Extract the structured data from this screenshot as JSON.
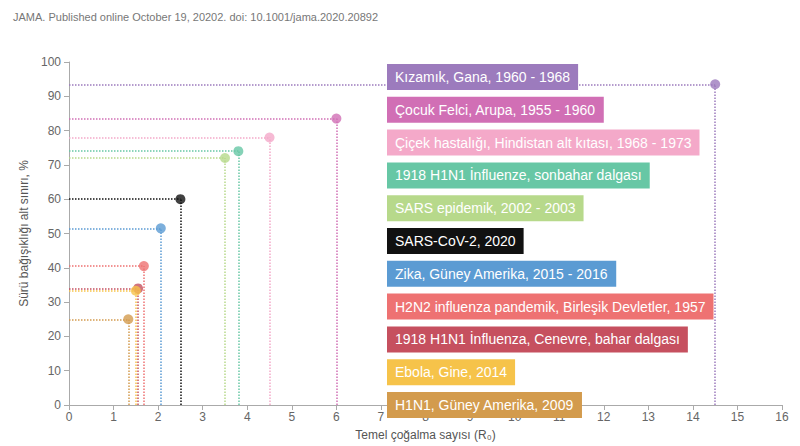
{
  "chart_data": {
    "type": "scatter",
    "title": "JAMA. Published online October 19, 20202. doi: 10.1001/jama.2020.20892",
    "x_label": "Temel çoğalma sayısı (R₀)",
    "y_label": "Sürü bağışıklığı alt sınırı, %",
    "xlim": [
      0,
      16
    ],
    "xticks": [
      0,
      1,
      2,
      3,
      4,
      5,
      6,
      7,
      8,
      9,
      10,
      11,
      12,
      13,
      14,
      15,
      16
    ],
    "ylim": [
      0,
      100
    ],
    "yticks": [
      0,
      10,
      20,
      30,
      40,
      50,
      60,
      70,
      80,
      90,
      100
    ],
    "grid": false,
    "marker": "circle",
    "line_style": "dotted",
    "series": [
      {
        "name": "Kızamık, Gana, 1960 - 1968",
        "color": "#9c7bbd",
        "x": [
          14.5
        ],
        "values": [
          93.5
        ]
      },
      {
        "name": "Çocuk Felci, Arupa, 1955 - 1960",
        "color": "#d16fb5",
        "x": [
          6
        ],
        "values": [
          83.5
        ]
      },
      {
        "name": "Çiçek hastalığı, Hindistan alt kıtası, 1968 - 1973",
        "color": "#f4a9c9",
        "x": [
          4.5
        ],
        "values": [
          78
        ]
      },
      {
        "name": "1918 H1N1 İnfluenze, sonbahar dalgası",
        "color": "#67c7a5",
        "x": [
          3.8
        ],
        "values": [
          74
        ]
      },
      {
        "name": "SARS epidemik, 2002 - 2003",
        "color": "#b7d98b",
        "x": [
          3.5
        ],
        "values": [
          72
        ]
      },
      {
        "name": "SARS-CoV-2, 2020",
        "color": "#111111",
        "x": [
          2.5
        ],
        "values": [
          60
        ]
      },
      {
        "name": "Zika, Güney Amerika, 2015 - 2016",
        "color": "#5b9bd3",
        "x": [
          2.06
        ],
        "values": [
          51.5
        ]
      },
      {
        "name": "H2N2 influenza pandemik, Birleşik Devletler, 1957",
        "color": "#ee7272",
        "x": [
          1.68
        ],
        "values": [
          40.5
        ]
      },
      {
        "name": "1918 H1N1 İnfluenza, Cenevre, bahar dalgası",
        "color": "#c6505f",
        "x": [
          1.55
        ],
        "values": [
          34
        ]
      },
      {
        "name": "Ebola, Gine, 2014",
        "color": "#f6c34a",
        "x": [
          1.5
        ],
        "values": [
          33.3
        ]
      },
      {
        "name": "H1N1, Güney Amerika, 2009",
        "color": "#d39b4d",
        "x": [
          1.33
        ],
        "values": [
          25
        ]
      }
    ]
  }
}
